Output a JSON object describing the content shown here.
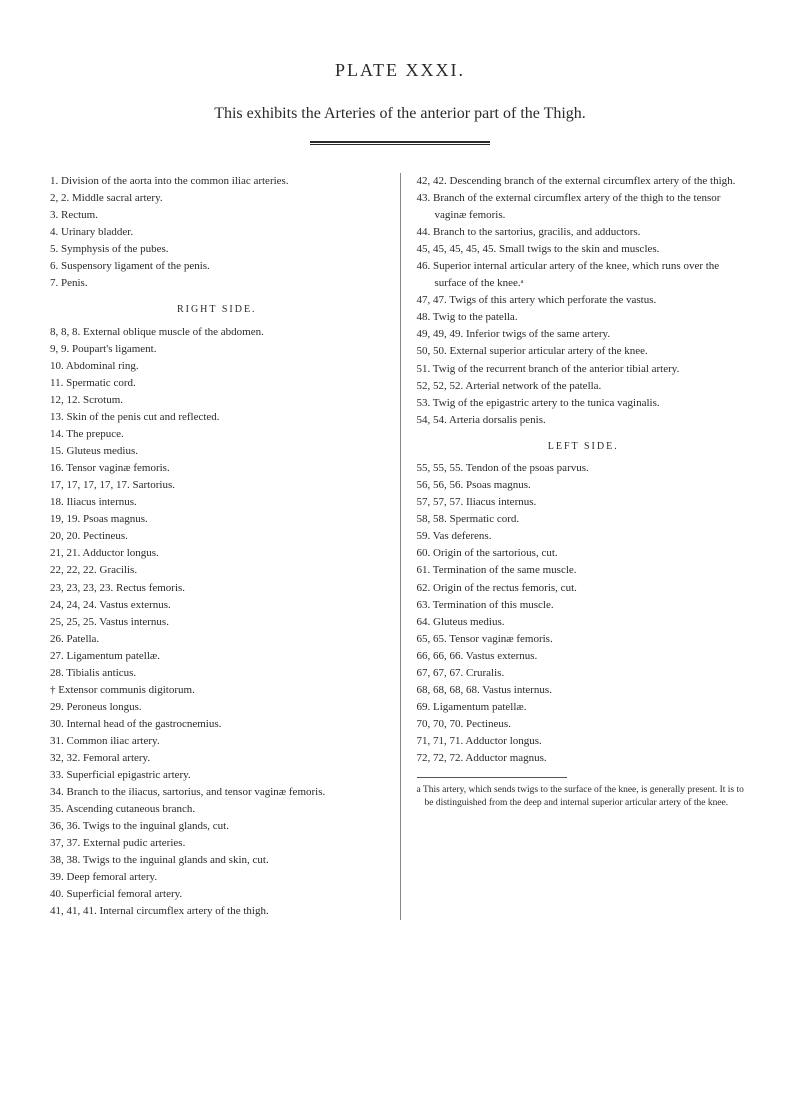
{
  "title": "PLATE XXXI.",
  "subtitle": "This exhibits the Arteries of the anterior part of the Thigh.",
  "left_col": {
    "items": [
      "1. Division of the aorta into the common iliac arteries.",
      "2, 2. Middle sacral artery.",
      "3. Rectum.",
      "4. Urinary bladder.",
      "5. Symphysis of the pubes.",
      "6. Suspensory ligament of the penis.",
      "7. Penis."
    ],
    "heading1": "RIGHT SIDE.",
    "items2": [
      "8, 8, 8. External oblique muscle of the abdomen.",
      "9, 9. Poupart's ligament.",
      "10. Abdominal ring.",
      "11. Spermatic cord.",
      "12, 12. Scrotum.",
      "13. Skin of the penis cut and reflected.",
      "14. The prepuce.",
      "15. Gluteus medius.",
      "16. Tensor vaginæ femoris.",
      "17, 17, 17, 17, 17. Sartorius.",
      "18. Iliacus internus.",
      "19, 19. Psoas magnus.",
      "20, 20. Pectineus.",
      "21, 21. Adductor longus.",
      "22, 22, 22. Gracilis.",
      "23, 23, 23, 23. Rectus femoris.",
      "24, 24, 24. Vastus externus.",
      "25, 25, 25. Vastus internus.",
      "26. Patella.",
      "27. Ligamentum patellæ.",
      "28. Tibialis anticus.",
      "† Extensor communis digitorum.",
      "29. Peroneus longus.",
      "30. Internal head of the gastrocnemius.",
      "31. Common iliac artery.",
      "32, 32. Femoral artery.",
      "33. Superficial epigastric artery.",
      "34. Branch to the iliacus, sartorius, and tensor vaginæ femoris.",
      "35. Ascending cutaneous branch.",
      "36, 36. Twigs to the inguinal glands, cut.",
      "37, 37. External pudic arteries.",
      "38, 38. Twigs to the inguinal glands and skin, cut.",
      "39. Deep femoral artery.",
      "40. Superficial femoral artery.",
      "41, 41, 41. Internal circumflex artery of the thigh."
    ]
  },
  "right_col": {
    "items": [
      "42, 42. Descending branch of the external circumflex artery of the thigh.",
      "43. Branch of the external circumflex artery of the thigh to the tensor vaginæ femoris.",
      "44. Branch to the sartorius, gracilis, and adductors.",
      "45, 45, 45, 45, 45. Small twigs to the skin and muscles.",
      "46. Superior internal articular artery of the knee, which runs over the surface of the knee.ᵃ",
      "47, 47. Twigs of this artery which perforate the vastus.",
      "48. Twig to the patella.",
      "49, 49, 49. Inferior twigs of the same artery.",
      "50, 50. External superior articular artery of the knee.",
      "51. Twig of the recurrent branch of the anterior tibial artery.",
      "52, 52, 52. Arterial network of the patella.",
      "53. Twig of the epigastric artery to the tunica vaginalis.",
      "54, 54. Arteria dorsalis penis."
    ],
    "heading1": "LEFT SIDE.",
    "items2": [
      "55, 55, 55. Tendon of the psoas parvus.",
      "56, 56, 56. Psoas magnus.",
      "57, 57, 57. Iliacus internus.",
      "58, 58. Spermatic cord.",
      "59. Vas deferens.",
      "60. Origin of the sartorious, cut.",
      "61. Termination of the same muscle.",
      "62. Origin of the rectus femoris, cut.",
      "63. Termination of this muscle.",
      "64. Gluteus medius.",
      "65, 65. Tensor vaginæ femoris.",
      "66, 66, 66. Vastus externus.",
      "67, 67, 67. Cruralis.",
      "68, 68, 68, 68. Vastus internus.",
      "69. Ligamentum patellæ.",
      "70, 70, 70. Pectineus.",
      "71, 71, 71. Adductor longus.",
      "72, 72, 72. Adductor magnus."
    ],
    "footnote": "a This artery, which sends twigs to the surface of the knee, is generally present. It is to be distinguished from the deep and internal superior articular artery of the knee."
  }
}
